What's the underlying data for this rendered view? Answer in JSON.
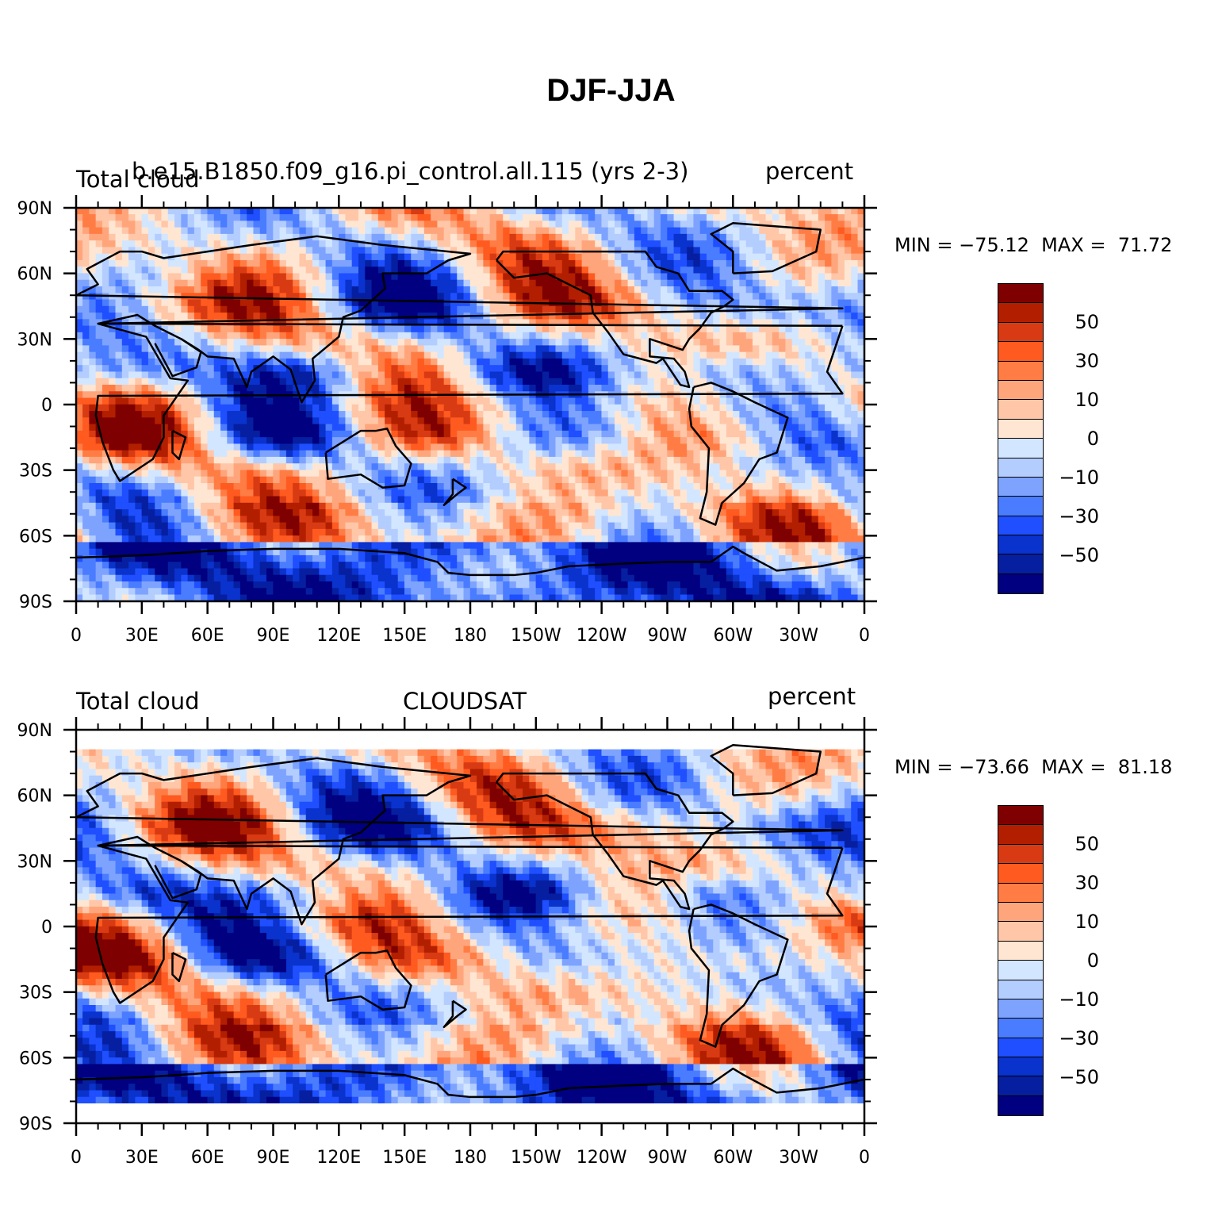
{
  "title": "DJF-JJA",
  "palette": [
    "#ffffff",
    "#d4e8ff",
    "#b0ccff",
    "#8cb0ff",
    "#5a8cff",
    "#2f5cf0",
    "#1a3ae0",
    "#1024b8",
    "#061c98",
    "#ffe4d0",
    "#ffc0a0",
    "#ffa07a",
    "#ff7a4a",
    "#f04a22",
    "#d02a10",
    "#b01a08",
    "#800000"
  ],
  "colorbar": {
    "colors": [
      "#7f0000",
      "#b21f00",
      "#d83b13",
      "#ff5a1f",
      "#ff7d45",
      "#ffa57c",
      "#ffc6a8",
      "#ffe6d3",
      "#d3e6ff",
      "#b3cdff",
      "#7ea3ff",
      "#4a7cff",
      "#1f4fff",
      "#0a32cc",
      "#061fa0",
      "#000080"
    ],
    "labels": [
      "50",
      "30",
      "10",
      "0",
      "−10",
      "−30",
      "−50"
    ]
  },
  "axis": {
    "lat_labels": [
      "90N",
      "60N",
      "30N",
      "0",
      "30S",
      "60S",
      "90S"
    ],
    "lon_labels": [
      "0",
      "30E",
      "60E",
      "90E",
      "120E",
      "150E",
      "180",
      "150W",
      "120W",
      "90W",
      "60W",
      "30W",
      "0"
    ]
  },
  "panels": [
    {
      "left_label": "Total cloud",
      "center_label": "b.e15.B1850.f09_g16.pi_control.all.115 (yrs 2-3)",
      "right_label": "percent",
      "stats": "MIN = −75.12  MAX =  71.72",
      "min": -75.12,
      "max": 71.72,
      "lat_extent": [
        -90,
        90
      ]
    },
    {
      "left_label": "Total cloud",
      "center_label": "CLOUDSAT",
      "right_label": "percent",
      "stats": "MIN = −73.66  MAX =  81.18",
      "min": -73.66,
      "max": 81.18,
      "lat_extent": [
        -81,
        81
      ]
    }
  ]
}
